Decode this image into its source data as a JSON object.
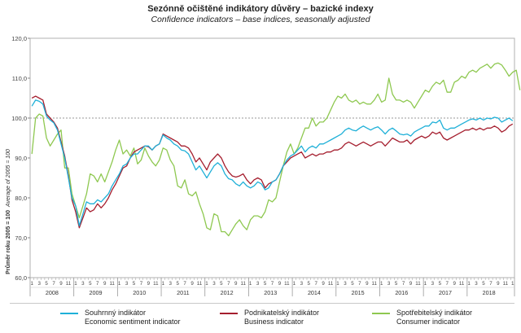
{
  "chart_data": {
    "type": "line",
    "title": "Sezónně očištěné indikátory důvěry – bazické indexy",
    "subtitle": "Confidence indicators – base indices, seasonally adjusted",
    "ylabel_cz": "Průměr roku  2005 = 100",
    "ylabel_en": "Average of 2005 = 100",
    "ylim": [
      60,
      120
    ],
    "y_ticks": [
      "60,0",
      "70,0",
      "80,0",
      "90,0",
      "100,0",
      "110,0",
      "120,0"
    ],
    "reference_line": 100,
    "years": [
      "2008",
      "2009",
      "2010",
      "2011",
      "2012",
      "2013",
      "2014",
      "2015",
      "2016",
      "2017",
      "2018"
    ],
    "month_ticks": [
      "1",
      "3",
      "5",
      "7",
      "9",
      "11"
    ],
    "months_last_year": 11,
    "series": [
      {
        "name": "Souhrnný indikátor",
        "name_en": "Economic sentiment indicator",
        "color": "#1fb0d8",
        "values": [
          103,
          104.5,
          104.2,
          103.5,
          100.5,
          99.5,
          98.8,
          97,
          93.5,
          90,
          85,
          80,
          78,
          73,
          76,
          79,
          78.5,
          78.5,
          79.5,
          79,
          80,
          81,
          83,
          84.5,
          86,
          88,
          88.5,
          90,
          91,
          91,
          92,
          93,
          93,
          92,
          93,
          93.5,
          95.8,
          95,
          94.5,
          93.5,
          93,
          92,
          91.8,
          91,
          89,
          87,
          88,
          86.5,
          85,
          86.5,
          88,
          88.8,
          88,
          86,
          84.8,
          84.5,
          83.5,
          83,
          84,
          83,
          82.5,
          83,
          84,
          83.5,
          82,
          82.5,
          84,
          84.5,
          86,
          88,
          89.5,
          90.5,
          91,
          92,
          93,
          91.5,
          92.5,
          93,
          92.5,
          93.5,
          93.5,
          94,
          94.5,
          95,
          95.5,
          96,
          97,
          97.5,
          97,
          96.8,
          97.5,
          98,
          97.5,
          97,
          97.5,
          97.8,
          97,
          96,
          97,
          97.5,
          96.8,
          96,
          95.8,
          96,
          95.5,
          96.5,
          97,
          97.5,
          98,
          98,
          99,
          98.8,
          99.5,
          97.5,
          97,
          97.5,
          97.5,
          98,
          98.5,
          99,
          99.5,
          99.8,
          99.5,
          100,
          99.5,
          100,
          99.8,
          100.2,
          100,
          99,
          99.5,
          100,
          99.3
        ]
      },
      {
        "name": "Podnikatelský indikátor",
        "name_en": "Business indicator",
        "color": "#a51e2e",
        "values": [
          105,
          105.5,
          105,
          104.5,
          101,
          100,
          99,
          97.5,
          94,
          90.5,
          85.5,
          79.5,
          76.5,
          72.5,
          75,
          77.5,
          76.5,
          77,
          78.5,
          77.5,
          78.5,
          80,
          82,
          83.5,
          85.5,
          87.5,
          88,
          90,
          91.5,
          92,
          92.5,
          93,
          92.8,
          92,
          93,
          93.5,
          96,
          95.5,
          95,
          94.5,
          94,
          93,
          93,
          92.5,
          91,
          89,
          90,
          88.5,
          87,
          89,
          90,
          91,
          90,
          88,
          86.5,
          85.5,
          85.2,
          85.5,
          86,
          84.5,
          83.5,
          84.5,
          85,
          84.5,
          82.5,
          83.5,
          84,
          84.5,
          86,
          88,
          89,
          90,
          90.5,
          91,
          91.5,
          90,
          90.5,
          91,
          90.5,
          91,
          91,
          91.5,
          91.5,
          92,
          92,
          92.5,
          93.5,
          94,
          93.5,
          93,
          93.5,
          94,
          93.5,
          93,
          93.5,
          94,
          94,
          93,
          94,
          95,
          94.5,
          94,
          94,
          94.5,
          93.5,
          94.5,
          95,
          95.5,
          95,
          95.5,
          96.5,
          96,
          96.5,
          95,
          94.5,
          95,
          95.5,
          96,
          96.5,
          97,
          97,
          97.5,
          97,
          97.5,
          97,
          97.5,
          97.5,
          98,
          97.5,
          96.5,
          97,
          98,
          98.5
        ]
      },
      {
        "name": "Spotřebitelský indikátor",
        "name_en": "Consumer indicator",
        "color": "#8ec850",
        "values": [
          91,
          100,
          101,
          100.5,
          95,
          93,
          94.5,
          96,
          97,
          87.5,
          87.5,
          81,
          78,
          75,
          78,
          81,
          86,
          85.5,
          84,
          86,
          84,
          86.5,
          89,
          92,
          94.5,
          91,
          92,
          90.5,
          92.5,
          88.5,
          89.5,
          92.5,
          90.5,
          89,
          88,
          89.5,
          92.5,
          92,
          89.5,
          88,
          83,
          82.5,
          84.5,
          81,
          80.5,
          81.5,
          78.5,
          76,
          72.5,
          72,
          76,
          75.5,
          71.5,
          71.5,
          70.5,
          72,
          73.5,
          74.5,
          73,
          72,
          74.5,
          75.5,
          75.5,
          75,
          76.5,
          79.5,
          79,
          80,
          84,
          88,
          91.5,
          93.5,
          91,
          92.5,
          95,
          97.5,
          97.5,
          100,
          98,
          99,
          99,
          100,
          102,
          104,
          105.5,
          105,
          106,
          104.5,
          104,
          104.5,
          103.5,
          104,
          103.5,
          103.5,
          104.5,
          106,
          104,
          104.5,
          110,
          106,
          104.5,
          104.5,
          104,
          104.5,
          104,
          102.5,
          104,
          105.5,
          107,
          106.5,
          108,
          109,
          108.5,
          109.5,
          106.5,
          106.5,
          109,
          109.5,
          110.5,
          110,
          111.5,
          112,
          111.5,
          112.5,
          113,
          113.5,
          112.5,
          113.5,
          113.8,
          113.3,
          112,
          110.5,
          111.5,
          112,
          107
        ]
      }
    ]
  }
}
